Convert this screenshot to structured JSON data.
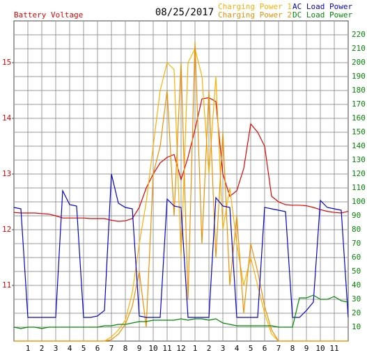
{
  "chart_data": {
    "type": "line",
    "title": "08/25/2017",
    "x": [
      0,
      0.5,
      1,
      1.5,
      2,
      2.5,
      3,
      3.5,
      4,
      4.5,
      5,
      5.5,
      6,
      6.5,
      7,
      7.5,
      8,
      8.5,
      9,
      9.5,
      10,
      10.5,
      11,
      11.5,
      12,
      12.5,
      13,
      13.5,
      14,
      14.5,
      15,
      15.5,
      16,
      16.5,
      17,
      17.5,
      18,
      18.5,
      19,
      19.5,
      20,
      20.5,
      21,
      21.5,
      22,
      22.5,
      23,
      23.5,
      24
    ],
    "xlim": [
      0,
      24
    ],
    "xticks": [
      1,
      2,
      3,
      4,
      5,
      6,
      7,
      8,
      9,
      10,
      11,
      12,
      {
        "value": 13,
        "label": "1"
      },
      {
        "value": 14,
        "label": "2"
      },
      {
        "value": 15,
        "label": "3"
      },
      {
        "value": 16,
        "label": "4"
      },
      {
        "value": 17,
        "label": "5"
      },
      {
        "value": 18,
        "label": "6"
      },
      {
        "value": 19,
        "label": "7"
      },
      {
        "value": 20,
        "label": "8"
      },
      {
        "value": 21,
        "label": "9"
      },
      {
        "value": 22,
        "label": "10"
      },
      {
        "value": 23,
        "label": "11"
      }
    ],
    "ylim": [
      10,
      15.75
    ],
    "yticks": [
      11,
      12,
      13,
      14,
      15
    ],
    "y2lim": [
      0,
      230
    ],
    "y2ticks": [
      10,
      20,
      30,
      40,
      50,
      60,
      70,
      80,
      90,
      100,
      110,
      120,
      130,
      140,
      150,
      160,
      170,
      180,
      190,
      200,
      210,
      220
    ],
    "grid": true,
    "series": [
      {
        "name": "Battery Voltage",
        "color": "#e00000",
        "values": [
          12.31,
          12.3,
          12.3,
          12.3,
          12.29,
          12.28,
          12.25,
          12.21,
          12.21,
          12.21,
          12.21,
          12.2,
          12.2,
          12.2,
          12.17,
          12.15,
          12.16,
          12.2,
          12.4,
          12.75,
          13.0,
          13.2,
          13.3,
          13.35,
          12.9,
          13.3,
          13.8,
          14.35,
          14.37,
          14.3,
          13.0,
          12.6,
          12.7,
          13.1,
          13.9,
          13.75,
          13.5,
          12.6,
          12.5,
          12.45,
          12.44,
          12.44,
          12.43,
          12.4,
          12.36,
          12.33,
          12.31,
          12.3,
          12.33
        ]
      },
      {
        "name": "Charging Power 1",
        "color": "#ffb000",
        "axis": "y2",
        "values": [
          0,
          0,
          0,
          0,
          0,
          0,
          0,
          0,
          0,
          0,
          0,
          0,
          0,
          0,
          3,
          8,
          15,
          35,
          70,
          100,
          140,
          180,
          200,
          195,
          60,
          200,
          210,
          190,
          120,
          190,
          80,
          110,
          70,
          40,
          60,
          40,
          20,
          5,
          0,
          0,
          0,
          0,
          0,
          0,
          0,
          0,
          0,
          0,
          0
        ]
      },
      {
        "name": "Charging Power 2",
        "color": "#f09000",
        "axis": "y2",
        "values": [
          0,
          0,
          0,
          0,
          0,
          0,
          0,
          0,
          0,
          0,
          0,
          0,
          0,
          0,
          1,
          5,
          12,
          25,
          50,
          10,
          120,
          140,
          180,
          90,
          200,
          30,
          215,
          70,
          180,
          60,
          150,
          40,
          90,
          20,
          70,
          50,
          25,
          8,
          0,
          0,
          0,
          0,
          0,
          0,
          0,
          0,
          0,
          0,
          0
        ]
      },
      {
        "name": "AC Load Power",
        "color": "#0000d0",
        "axis": "y2",
        "values": [
          96,
          95,
          17,
          17,
          17,
          17,
          17,
          108,
          98,
          97,
          17,
          17,
          18,
          22,
          120,
          99,
          96,
          95,
          18,
          17,
          17,
          17,
          102,
          97,
          96,
          17,
          17,
          17,
          17,
          103,
          97,
          96,
          17,
          17,
          17,
          17,
          96,
          95,
          94,
          93,
          17,
          17,
          22,
          28,
          101,
          96,
          95,
          94,
          17
        ]
      },
      {
        "name": "DC Load Power",
        "color": "#008800",
        "axis": "y2",
        "values": [
          10,
          9,
          10,
          10,
          9,
          10,
          10,
          10,
          10,
          10,
          10,
          10,
          10,
          11,
          11,
          12,
          12,
          13,
          14,
          14,
          15,
          15,
          15,
          15,
          16,
          15,
          16,
          16,
          15,
          16,
          13,
          12,
          11,
          11,
          11,
          11,
          11,
          11,
          10,
          10,
          10,
          31,
          31,
          33,
          30,
          30,
          32,
          29,
          28
        ]
      }
    ]
  }
}
